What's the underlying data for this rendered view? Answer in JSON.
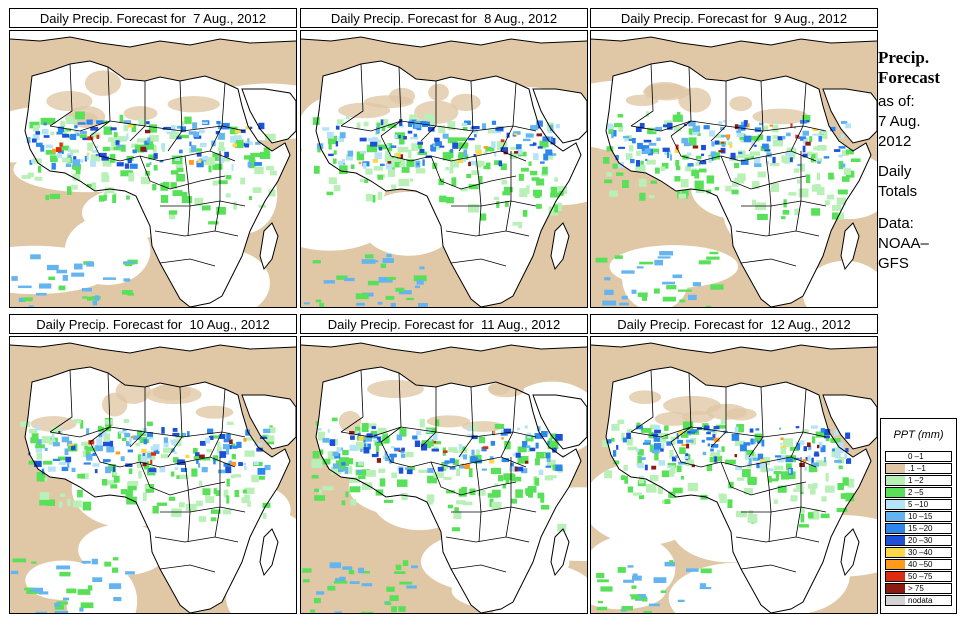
{
  "panels": [
    {
      "title": "Daily Precip. Forecast for  7 Aug., 2012",
      "seed": 11
    },
    {
      "title": "Daily Precip. Forecast for  8 Aug., 2012",
      "seed": 23
    },
    {
      "title": "Daily Precip. Forecast for  9 Aug., 2012",
      "seed": 37
    },
    {
      "title": "Daily Precip. Forecast for  10 Aug., 2012",
      "seed": 41
    },
    {
      "title": "Daily Precip. Forecast for  11 Aug., 2012",
      "seed": 53
    },
    {
      "title": "Daily Precip. Forecast for  12 Aug., 2012",
      "seed": 67
    }
  ],
  "side": {
    "title_line1": "Precip.",
    "title_line2": "Forecast",
    "asof": "as of:",
    "date1": "7 Aug.",
    "date2": "2012",
    "daily": "Daily",
    "totals": "Totals",
    "data": "Data:",
    "source1": "NOAA–",
    "source2": "GFS"
  },
  "legend": {
    "title": "PPT (mm)",
    "entries": [
      {
        "label": "0 –1",
        "color": "#ffffff"
      },
      {
        "label": ".1 –1",
        "color": "#e0c8a6"
      },
      {
        "label": "1 –2",
        "color": "#b8f0b8"
      },
      {
        "label": "2 –5",
        "color": "#58e058"
      },
      {
        "label": "5 –10",
        "color": "#b6e4f6"
      },
      {
        "label": "10 –15",
        "color": "#64b4f0"
      },
      {
        "label": "15 –20",
        "color": "#2c86ec"
      },
      {
        "label": "20 –30",
        "color": "#1c50d8"
      },
      {
        "label": "30 –40",
        "color": "#ffd84a"
      },
      {
        "label": "40 –50",
        "color": "#ff9a1c"
      },
      {
        "label": "50 –75",
        "color": "#e02a10"
      },
      {
        "label": "> 75",
        "color": "#8c1a10"
      },
      {
        "label": "nodata",
        "color": "#d4d4d4"
      }
    ]
  },
  "colors": {
    "land_dry": "#ffffff",
    "border": "#000000"
  }
}
